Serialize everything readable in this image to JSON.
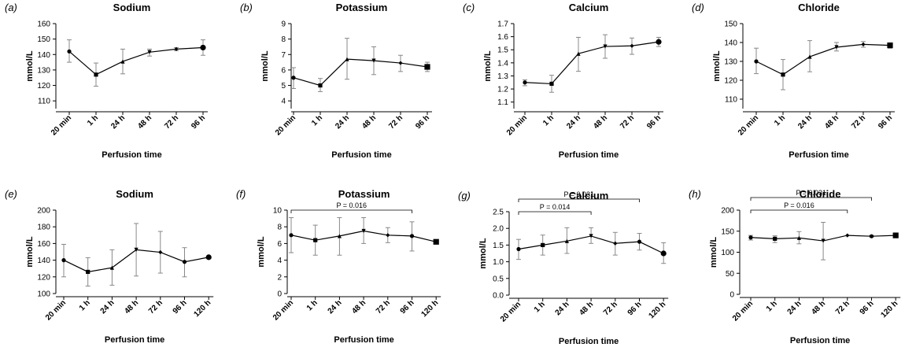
{
  "chart_data": [
    {
      "type": "line",
      "panel": "(a)",
      "title": "Sodium",
      "xlabel": "Perfusion time",
      "ylabel": "mmol/L",
      "categories": [
        "20 min",
        "1 h",
        "24 h",
        "48 h",
        "72 h",
        "96 h"
      ],
      "values": [
        142,
        127,
        135.5,
        141.5,
        143.5,
        144.5
      ],
      "err_low": [
        135,
        119.5,
        127.5,
        139,
        142.5,
        139.5
      ],
      "err_high": [
        149.5,
        134.5,
        143.5,
        143.5,
        144.5,
        149.5
      ],
      "ylim": [
        105,
        160
      ],
      "yticks": [
        110,
        120,
        130,
        140,
        150,
        160
      ]
    },
    {
      "type": "line",
      "panel": "(b)",
      "title": "Potassium",
      "xlabel": "Perfusion time",
      "ylabel": "mmol/L",
      "categories": [
        "20 min",
        "1 h",
        "24 h",
        "48 h",
        "72 h",
        "96 h"
      ],
      "values": [
        5.5,
        5.0,
        6.7,
        6.6,
        6.45,
        6.2
      ],
      "err_low": [
        4.8,
        4.6,
        5.4,
        5.7,
        5.9,
        5.9
      ],
      "err_high": [
        6.15,
        5.45,
        8.05,
        7.5,
        6.95,
        6.5
      ],
      "ylim": [
        3.5,
        9
      ],
      "yticks": [
        4,
        5,
        6,
        7,
        8,
        9
      ]
    },
    {
      "type": "line",
      "panel": "(c)",
      "title": "Calcium",
      "xlabel": "Perfusion time",
      "ylabel": "mmol/L",
      "categories": [
        "20 min",
        "1 h",
        "24 h",
        "48 h",
        "72 h",
        "96 h"
      ],
      "values": [
        1.25,
        1.24,
        1.47,
        1.525,
        1.53,
        1.56
      ],
      "err_low": [
        1.225,
        1.175,
        1.335,
        1.435,
        1.465,
        1.525
      ],
      "err_high": [
        1.27,
        1.305,
        1.595,
        1.615,
        1.59,
        1.595
      ],
      "ylim": [
        1.05,
        1.7
      ],
      "yticks": [
        1.1,
        1.2,
        1.3,
        1.4,
        1.5,
        1.6,
        1.7
      ]
    },
    {
      "type": "line",
      "panel": "(d)",
      "title": "Chloride",
      "xlabel": "Perfusion time",
      "ylabel": "mmol/L",
      "categories": [
        "20 min",
        "1 h",
        "24 h",
        "48 h",
        "72 h",
        "96 h"
      ],
      "values": [
        130,
        123,
        132.5,
        137.5,
        139,
        138.5
      ],
      "err_low": [
        123.5,
        115,
        124.5,
        135.5,
        137.5,
        137
      ],
      "err_high": [
        137,
        131,
        141,
        140,
        140.5,
        139.5
      ],
      "ylim": [
        105,
        150
      ],
      "yticks": [
        110,
        120,
        130,
        140,
        150
      ]
    },
    {
      "type": "line",
      "panel": "(e)",
      "title": "Sodium",
      "xlabel": "Perfusion time",
      "ylabel": "mmol/L",
      "categories": [
        "20 min",
        "1 h",
        "24 h",
        "48 h",
        "72 h",
        "96 h",
        "120 h"
      ],
      "values": [
        140,
        126,
        131,
        152.5,
        149.5,
        138,
        143.5
      ],
      "err_low": [
        120,
        109,
        110,
        121,
        124.5,
        120,
        143.5
      ],
      "err_high": [
        159,
        143,
        152.5,
        184,
        174.5,
        155,
        143.5
      ],
      "ylim": [
        100,
        200
      ],
      "yticks": [
        100,
        120,
        140,
        160,
        180,
        200
      ]
    },
    {
      "type": "line",
      "panel": "(f)",
      "title": "Potassium",
      "xlabel": "Perfusion time",
      "ylabel": "mmol/L",
      "categories": [
        "20 min",
        "1 h",
        "24 h",
        "48 h",
        "72 h",
        "96 h",
        "120 h"
      ],
      "values": [
        7.0,
        6.4,
        6.9,
        7.5,
        7.0,
        6.9,
        6.2
      ],
      "err_low": [
        4.9,
        4.6,
        4.6,
        6.0,
        6.1,
        5.1,
        6.2
      ],
      "err_high": [
        9.1,
        8.2,
        9.1,
        9.1,
        7.9,
        8.6,
        6.2
      ],
      "ylim": [
        0,
        10
      ],
      "yticks": [
        0,
        2,
        4,
        6,
        8,
        10
      ],
      "significance": [
        {
          "from": "20 min",
          "to": "96 h",
          "label": "P = 0.016"
        }
      ]
    },
    {
      "type": "line",
      "panel": "(g)",
      "title": "Calcium",
      "xlabel": "Perfusion time",
      "ylabel": "mmol/L",
      "categories": [
        "20 min",
        "1 h",
        "24 h",
        "48 h",
        "72 h",
        "96 h",
        "120 h"
      ],
      "values": [
        1.38,
        1.5,
        1.62,
        1.77,
        1.55,
        1.6,
        1.25
      ],
      "err_low": [
        1.07,
        1.2,
        1.25,
        1.55,
        1.2,
        1.35,
        0.95
      ],
      "err_high": [
        1.67,
        1.8,
        2.02,
        2.02,
        1.88,
        1.85,
        1.57
      ],
      "ylim": [
        0,
        2.5
      ],
      "yticks": [
        0.0,
        0.5,
        1.0,
        1.5,
        2.0,
        2.5
      ],
      "significance": [
        {
          "from": "20 min",
          "to": "48 h",
          "label": "P = 0.014"
        },
        {
          "from": "20 min",
          "to": "96 h",
          "label": "P = 0.031"
        }
      ]
    },
    {
      "type": "line",
      "panel": "(h)",
      "title": "Chloride",
      "xlabel": "Perfusion time",
      "ylabel": "mmol/L",
      "categories": [
        "20 min",
        "1 h",
        "24 h",
        "48 h",
        "72 h",
        "96 h",
        "120 h"
      ],
      "values": [
        135,
        132,
        134,
        127,
        140,
        138,
        140
      ],
      "err_low": [
        129,
        123,
        120,
        82,
        140,
        136,
        140
      ],
      "err_high": [
        140,
        139,
        149,
        171,
        140,
        140,
        140
      ],
      "ylim": [
        0,
        200
      ],
      "yticks": [
        0,
        50,
        100,
        150,
        200
      ],
      "significance": [
        {
          "from": "20 min",
          "to": "72 h",
          "label": "P = 0.016"
        },
        {
          "from": "20 min",
          "to": "96 h",
          "label": "P = 0.031"
        }
      ]
    }
  ]
}
